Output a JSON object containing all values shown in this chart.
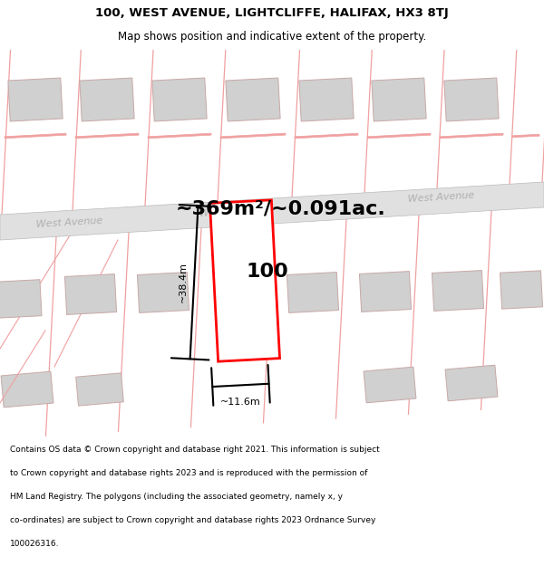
{
  "title_line1": "100, WEST AVENUE, LIGHTCLIFFE, HALIFAX, HX3 8TJ",
  "title_line2": "Map shows position and indicative extent of the property.",
  "area_text": "~369m²/~0.091ac.",
  "label_100": "100",
  "dim_height": "~38.4m",
  "dim_width": "~11.6m",
  "street_label": "West Avenue",
  "footer_text": "Contains OS data © Crown copyright and database right 2021. This information is subject to Crown copyright and database rights 2023 and is reproduced with the permission of HM Land Registry. The polygons (including the associated geometry, namely x, y co-ordinates) are subject to Crown copyright and database rights 2023 Ordnance Survey 100026316.",
  "bg_color": "#ffffff",
  "map_bg": "#ffffff",
  "road_fill": "#e0e0e0",
  "road_edge": "#bbbbbb",
  "parcel_edge": "#f0a0a0",
  "building_fill": "#d0d0d0",
  "building_edge": "#c8a8a8",
  "red_parcel_edge": "#ff0000",
  "dim_color": "#000000",
  "title_color": "#000000",
  "street_text_color": "#aaaaaa",
  "footer_color": "#000000",
  "area_color": "#000000"
}
